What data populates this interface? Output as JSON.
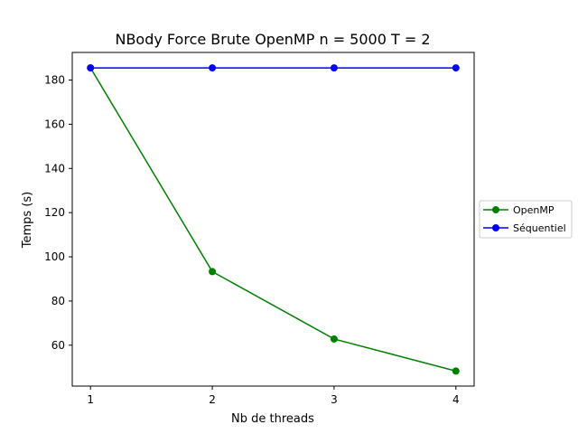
{
  "chart_data": {
    "type": "line",
    "title": "NBody Force Brute OpenMP n = 5000 T = 2",
    "xlabel": "Nb de threads",
    "ylabel": "Temps (s)",
    "x": [
      1,
      2,
      3,
      4
    ],
    "xticks": [
      "1",
      "2",
      "3",
      "4"
    ],
    "yticks": [
      60,
      80,
      100,
      120,
      140,
      160,
      180
    ],
    "xlim": [
      0.85,
      4.15
    ],
    "ylim": [
      41.5,
      192.5
    ],
    "grid": false,
    "legend_position": "right",
    "series": [
      {
        "name": "OpenMP",
        "color": "#008000",
        "marker": "circle",
        "values": [
          185.5,
          93.3,
          62.8,
          48.3
        ]
      },
      {
        "name": "Séquentiel",
        "color": "#0000ff",
        "marker": "circle",
        "values": [
          185.5,
          185.5,
          185.5,
          185.5
        ]
      }
    ]
  }
}
